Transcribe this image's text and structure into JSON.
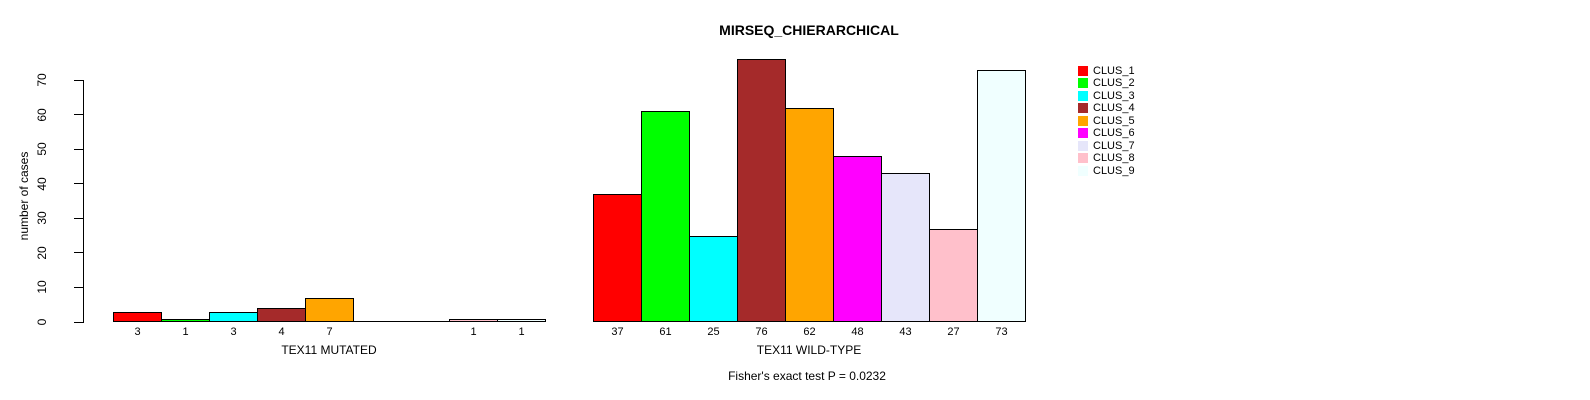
{
  "chart_data": {
    "type": "bar",
    "title": "MIRSEQ_CHIERARCHICAL",
    "ylabel": "number of cases",
    "footnote": "Fisher's exact test P = 0.0232",
    "ylim": [
      0,
      76
    ],
    "yticks": [
      0,
      10,
      20,
      30,
      40,
      50,
      60,
      70
    ],
    "grid": false,
    "legend_position": "top-right",
    "categories": [
      "TEX11 MUTATED",
      "TEX11 WILD-TYPE"
    ],
    "series": [
      {
        "name": "CLUS_1",
        "color": "#ff0000",
        "values": [
          3,
          37
        ]
      },
      {
        "name": "CLUS_2",
        "color": "#00ff00",
        "values": [
          1,
          61
        ]
      },
      {
        "name": "CLUS_3",
        "color": "#00ffff",
        "values": [
          3,
          25
        ]
      },
      {
        "name": "CLUS_4",
        "color": "#a52a2a",
        "values": [
          4,
          76
        ]
      },
      {
        "name": "CLUS_5",
        "color": "#ffa500",
        "values": [
          7,
          62
        ]
      },
      {
        "name": "CLUS_6",
        "color": "#ff00ff",
        "values": [
          0,
          48
        ]
      },
      {
        "name": "CLUS_7",
        "color": "#e6e6fa",
        "values": [
          0,
          43
        ]
      },
      {
        "name": "CLUS_8",
        "color": "#ffc0cb",
        "values": [
          1,
          27
        ]
      },
      {
        "name": "CLUS_9",
        "color": "#f0ffff",
        "values": [
          1,
          73
        ]
      }
    ]
  }
}
